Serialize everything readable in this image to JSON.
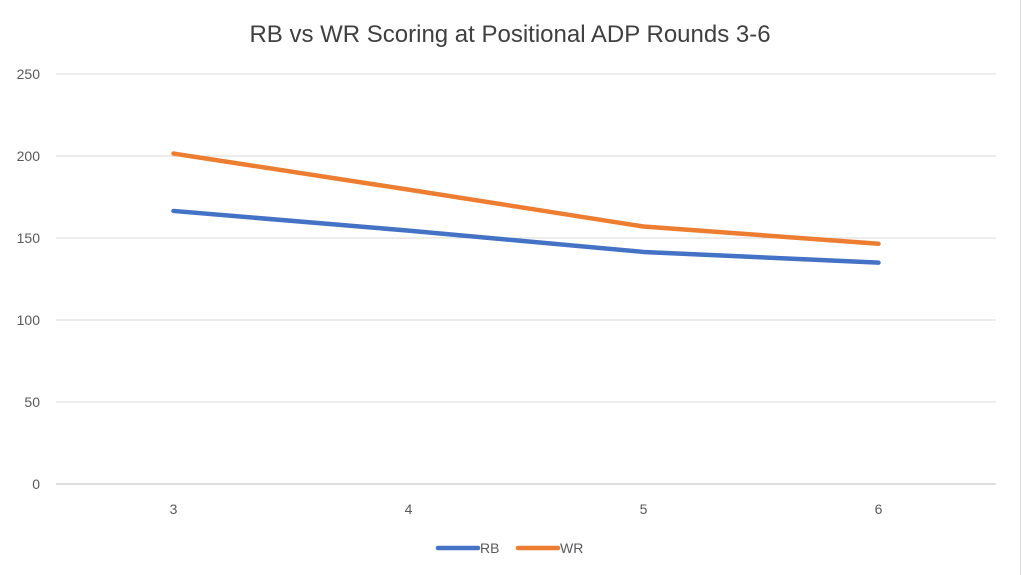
{
  "chart_data": {
    "type": "line",
    "title": "RB vs WR Scoring at Positional ADP Rounds 3-6",
    "xlabel": "",
    "ylabel": "",
    "categories": [
      "3",
      "4",
      "5",
      "6"
    ],
    "ylim": [
      0,
      250
    ],
    "yticks": [
      0,
      50,
      100,
      150,
      200,
      250
    ],
    "grid": true,
    "legend_position": "bottom",
    "series": [
      {
        "name": "RB",
        "values": [
          166.5,
          154.5,
          141.5,
          135
        ],
        "color": "#4472C4"
      },
      {
        "name": "WR",
        "values": [
          201.5,
          179.5,
          157,
          146.5
        ],
        "color": "#ED7D31"
      }
    ]
  }
}
